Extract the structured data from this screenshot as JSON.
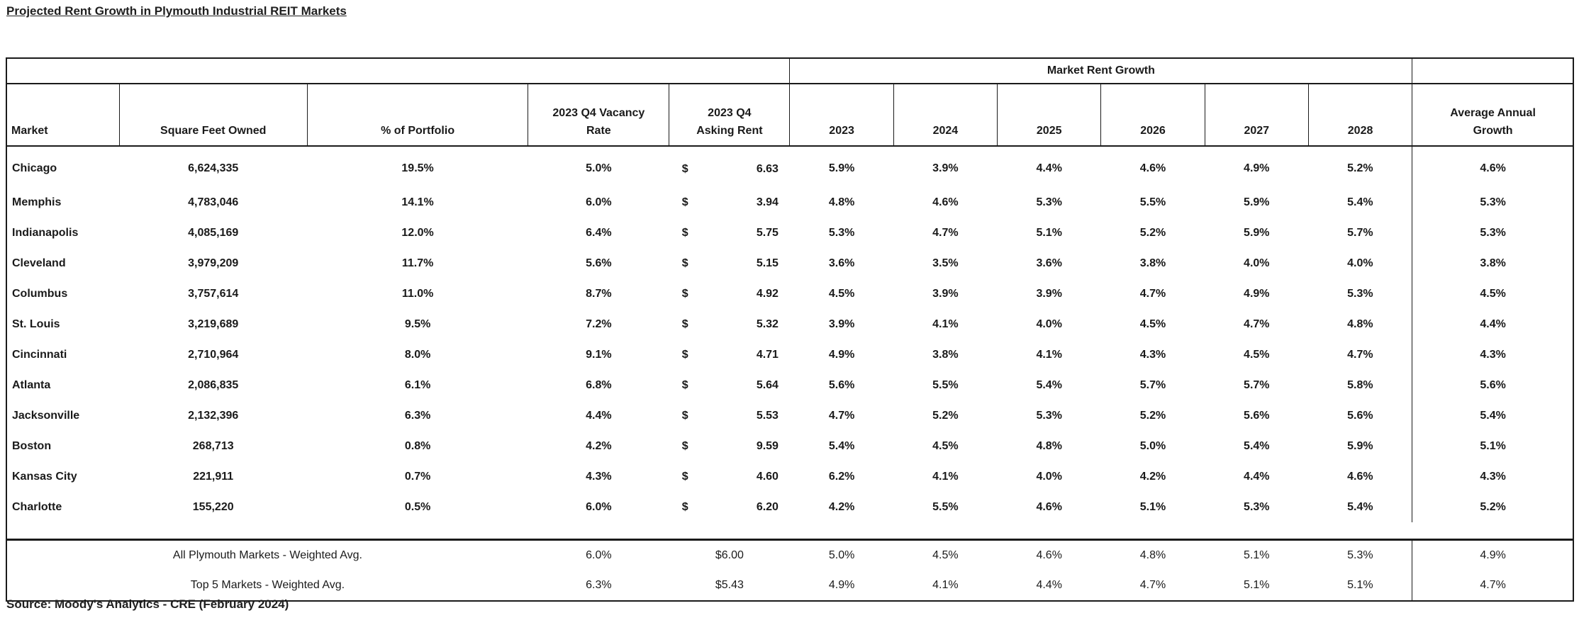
{
  "page": {
    "title": "Projected Rent Growth in Plymouth Industrial REIT Markets",
    "source": "Source: Moody's Analytics - CRE (February 2024)"
  },
  "table": {
    "group_header": "Market Rent Growth",
    "currency_symbol": "$",
    "columns": {
      "market": "Market",
      "square_feet": "Square Feet Owned",
      "pct_portfolio": "% of Portfolio",
      "vacancy": [
        "2023 Q4 Vacancy",
        "Rate"
      ],
      "asking_rent": [
        "2023 Q4",
        "Asking Rent"
      ],
      "years": [
        "2023",
        "2024",
        "2025",
        "2026",
        "2027",
        "2028"
      ],
      "avg_annual": [
        "Average Annual",
        "Growth"
      ]
    },
    "rows": [
      {
        "market": "Chicago",
        "square_feet": "6,624,335",
        "pct_portfolio": "19.5%",
        "vacancy": "5.0%",
        "asking_rent": "6.63",
        "growth": [
          "5.9%",
          "3.9%",
          "4.4%",
          "4.6%",
          "4.9%",
          "5.2%"
        ],
        "avg_growth": "4.6%"
      },
      {
        "market": "Memphis",
        "square_feet": "4,783,046",
        "pct_portfolio": "14.1%",
        "vacancy": "6.0%",
        "asking_rent": "3.94",
        "growth": [
          "4.8%",
          "4.6%",
          "5.3%",
          "5.5%",
          "5.9%",
          "5.4%"
        ],
        "avg_growth": "5.3%"
      },
      {
        "market": "Indianapolis",
        "square_feet": "4,085,169",
        "pct_portfolio": "12.0%",
        "vacancy": "6.4%",
        "asking_rent": "5.75",
        "growth": [
          "5.3%",
          "4.7%",
          "5.1%",
          "5.2%",
          "5.9%",
          "5.7%"
        ],
        "avg_growth": "5.3%"
      },
      {
        "market": "Cleveland",
        "square_feet": "3,979,209",
        "pct_portfolio": "11.7%",
        "vacancy": "5.6%",
        "asking_rent": "5.15",
        "growth": [
          "3.6%",
          "3.5%",
          "3.6%",
          "3.8%",
          "4.0%",
          "4.0%"
        ],
        "avg_growth": "3.8%"
      },
      {
        "market": "Columbus",
        "square_feet": "3,757,614",
        "pct_portfolio": "11.0%",
        "vacancy": "8.7%",
        "asking_rent": "4.92",
        "growth": [
          "4.5%",
          "3.9%",
          "3.9%",
          "4.7%",
          "4.9%",
          "5.3%"
        ],
        "avg_growth": "4.5%"
      },
      {
        "market": "St. Louis",
        "square_feet": "3,219,689",
        "pct_portfolio": "9.5%",
        "vacancy": "7.2%",
        "asking_rent": "5.32",
        "growth": [
          "3.9%",
          "4.1%",
          "4.0%",
          "4.5%",
          "4.7%",
          "4.8%"
        ],
        "avg_growth": "4.4%"
      },
      {
        "market": "Cincinnati",
        "square_feet": "2,710,964",
        "pct_portfolio": "8.0%",
        "vacancy": "9.1%",
        "asking_rent": "4.71",
        "growth": [
          "4.9%",
          "3.8%",
          "4.1%",
          "4.3%",
          "4.5%",
          "4.7%"
        ],
        "avg_growth": "4.3%"
      },
      {
        "market": "Atlanta",
        "square_feet": "2,086,835",
        "pct_portfolio": "6.1%",
        "vacancy": "6.8%",
        "asking_rent": "5.64",
        "growth": [
          "5.6%",
          "5.5%",
          "5.4%",
          "5.7%",
          "5.7%",
          "5.8%"
        ],
        "avg_growth": "5.6%"
      },
      {
        "market": "Jacksonville",
        "square_feet": "2,132,396",
        "pct_portfolio": "6.3%",
        "vacancy": "4.4%",
        "asking_rent": "5.53",
        "growth": [
          "4.7%",
          "5.2%",
          "5.3%",
          "5.2%",
          "5.6%",
          "5.6%"
        ],
        "avg_growth": "5.4%"
      },
      {
        "market": "Boston",
        "square_feet": "268,713",
        "pct_portfolio": "0.8%",
        "vacancy": "4.2%",
        "asking_rent": "9.59",
        "growth": [
          "5.4%",
          "4.5%",
          "4.8%",
          "5.0%",
          "5.4%",
          "5.9%"
        ],
        "avg_growth": "5.1%"
      },
      {
        "market": "Kansas City",
        "square_feet": "221,911",
        "pct_portfolio": "0.7%",
        "vacancy": "4.3%",
        "asking_rent": "4.60",
        "growth": [
          "6.2%",
          "4.1%",
          "4.0%",
          "4.2%",
          "4.4%",
          "4.6%"
        ],
        "avg_growth": "4.3%"
      },
      {
        "market": "Charlotte",
        "square_feet": "155,220",
        "pct_portfolio": "0.5%",
        "vacancy": "6.0%",
        "asking_rent": "6.20",
        "growth": [
          "4.2%",
          "5.5%",
          "4.6%",
          "5.1%",
          "5.3%",
          "5.4%"
        ],
        "avg_growth": "5.2%"
      }
    ],
    "summary_rows": [
      {
        "label": "All Plymouth Markets - Weighted Avg.",
        "vacancy": "6.0%",
        "asking_rent": "$6.00",
        "growth": [
          "5.0%",
          "4.5%",
          "4.6%",
          "4.8%",
          "5.1%",
          "5.3%"
        ],
        "avg_growth": "4.9%"
      },
      {
        "label": "Top 5 Markets - Weighted Avg.",
        "vacancy": "6.3%",
        "asking_rent": "$5.43",
        "growth": [
          "4.9%",
          "4.1%",
          "4.4%",
          "4.7%",
          "5.1%",
          "5.1%"
        ],
        "avg_growth": "4.7%"
      }
    ]
  }
}
